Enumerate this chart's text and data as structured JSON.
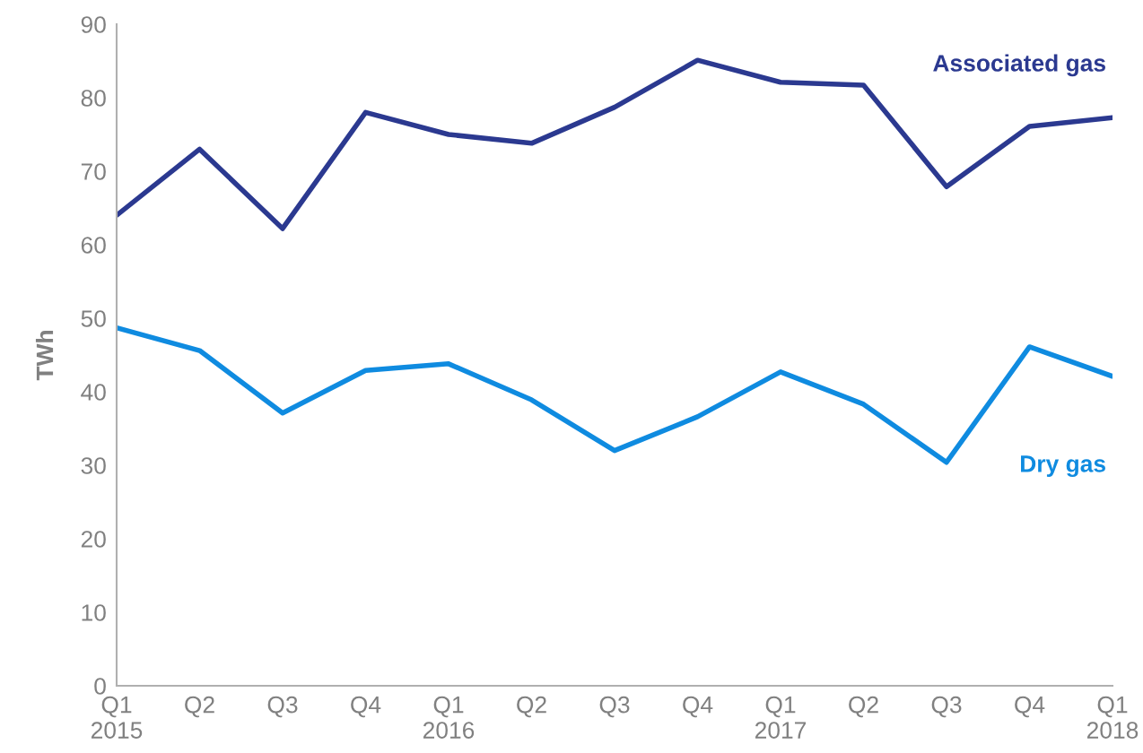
{
  "chart_data": {
    "type": "line",
    "ylabel": "TWh",
    "categories": [
      "Q1\n2015",
      "Q2",
      "Q3",
      "Q4",
      "Q1\n2016",
      "Q2",
      "Q3",
      "Q4",
      "Q1\n2017",
      "Q2",
      "Q3",
      "Q4",
      "Q1\n2018"
    ],
    "series": [
      {
        "name": "Associated gas",
        "color": "#2b3990",
        "values": [
          64.0,
          73.0,
          62.2,
          78.0,
          75.0,
          73.8,
          78.7,
          85.1,
          82.1,
          81.7,
          67.9,
          76.1,
          77.3
        ]
      },
      {
        "name": "Dry gas",
        "color": "#0f8be0",
        "values": [
          48.7,
          45.6,
          37.1,
          42.9,
          43.8,
          38.9,
          32.0,
          36.6,
          42.7,
          38.3,
          30.4,
          46.1,
          42.1
        ]
      }
    ],
    "ylim": [
      0,
      90
    ],
    "yticks": [
      0,
      10,
      20,
      30,
      40,
      50,
      60,
      70,
      80,
      90
    ],
    "grid": false,
    "legend": false,
    "marker": "none",
    "line_style": "solid"
  }
}
